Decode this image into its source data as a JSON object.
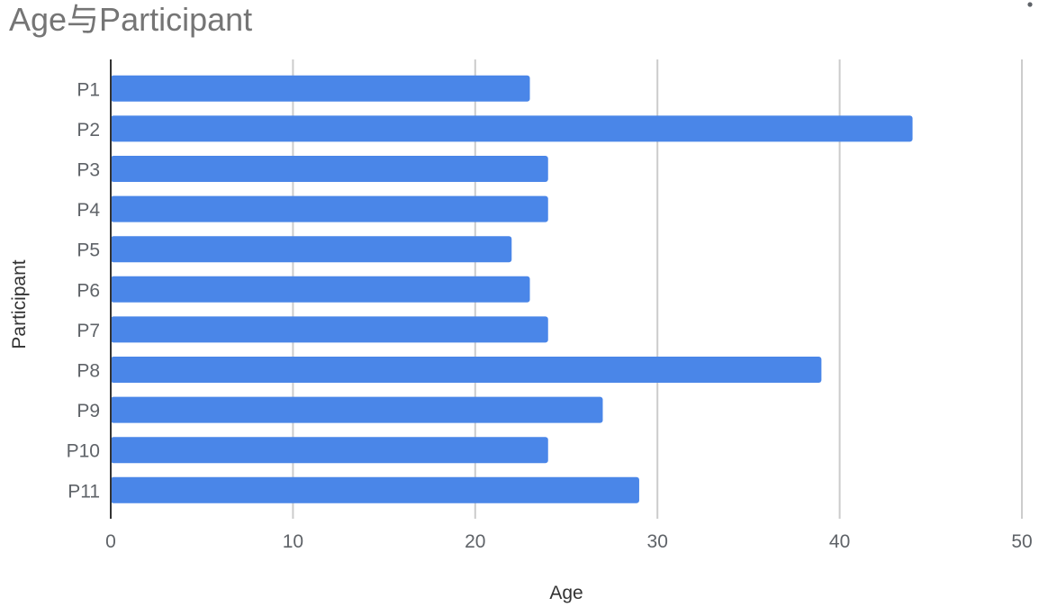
{
  "chart_data": {
    "type": "bar",
    "orientation": "horizontal",
    "title": "Age与Participant",
    "xlabel": "Age",
    "ylabel": "Participant",
    "categories": [
      "P1",
      "P2",
      "P3",
      "P4",
      "P5",
      "P6",
      "P7",
      "P8",
      "P9",
      "P10",
      "P11"
    ],
    "series": [
      {
        "values": [
          23,
          44,
          24,
          24,
          22,
          23,
          24,
          39,
          27,
          24,
          29
        ]
      }
    ],
    "xlim": [
      0,
      50
    ],
    "xticks": [
      0,
      10,
      20,
      30,
      40,
      50
    ],
    "grid": true,
    "legend": "none",
    "colors": {
      "bar": "#4a86e8",
      "grid": "#cccccc",
      "axis": "#333333",
      "title": "#757575"
    }
  },
  "menu": {
    "icon": "more-vert-icon"
  }
}
